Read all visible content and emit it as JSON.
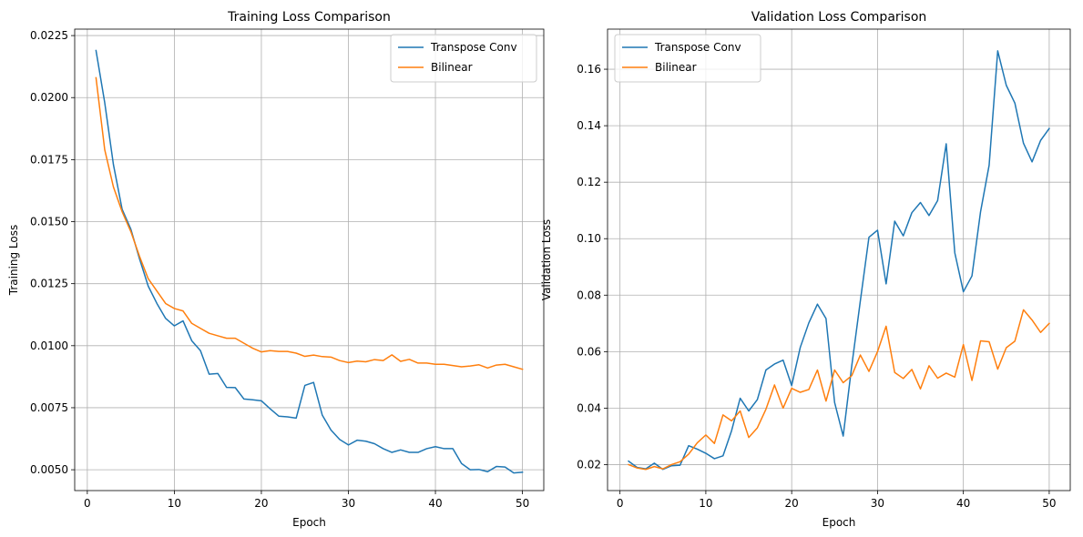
{
  "chart_data": [
    {
      "type": "line",
      "title": "Training Loss Comparison",
      "xlabel": "Epoch",
      "ylabel": "Training Loss",
      "xlim": [
        -1.45,
        52.45
      ],
      "ylim": [
        0.00416,
        0.02276
      ],
      "xticks": [
        0,
        10,
        20,
        30,
        40,
        50
      ],
      "yticks": [
        0.005,
        0.0075,
        0.01,
        0.0125,
        0.015,
        0.0175,
        0.02,
        0.0225
      ],
      "ytick_labels": [
        "0.0050",
        "0.0075",
        "0.0100",
        "0.0125",
        "0.0150",
        "0.0175",
        "0.0200",
        "0.0225"
      ],
      "grid": true,
      "legend_position": "upper right",
      "x": [
        1,
        2,
        3,
        4,
        5,
        6,
        7,
        8,
        9,
        10,
        11,
        12,
        13,
        14,
        15,
        16,
        17,
        18,
        19,
        20,
        21,
        22,
        23,
        24,
        25,
        26,
        27,
        28,
        29,
        30,
        31,
        32,
        33,
        34,
        35,
        36,
        37,
        38,
        39,
        40,
        41,
        42,
        43,
        44,
        45,
        46,
        47,
        48,
        49,
        50
      ],
      "series": [
        {
          "name": "Transpose Conv",
          "color": "#1f77b4",
          "values": [
            0.0219,
            0.0198,
            0.0173,
            0.0155,
            0.0147,
            0.0135,
            0.0124,
            0.0117,
            0.0111,
            0.0108,
            0.011,
            0.0102,
            0.0098,
            0.00885,
            0.00888,
            0.00832,
            0.00831,
            0.00785,
            0.00782,
            0.00778,
            0.00746,
            0.00716,
            0.00713,
            0.00708,
            0.0084,
            0.00852,
            0.0072,
            0.0066,
            0.00622,
            0.006,
            0.00619,
            0.00615,
            0.00605,
            0.00585,
            0.0057,
            0.0058,
            0.0057,
            0.0057,
            0.00585,
            0.00593,
            0.00585,
            0.00585,
            0.00525,
            0.005,
            0.00501,
            0.00492,
            0.00513,
            0.00511,
            0.00487,
            0.0049
          ]
        },
        {
          "name": "Bilinear",
          "color": "#ff7f0e",
          "values": [
            0.0208,
            0.0179,
            0.0164,
            0.0154,
            0.0146,
            0.0136,
            0.0127,
            0.0122,
            0.0117,
            0.0115,
            0.0114,
            0.0109,
            0.0107,
            0.0105,
            0.0104,
            0.0103,
            0.0103,
            0.0101,
            0.0099,
            0.00975,
            0.0098,
            0.00977,
            0.00977,
            0.0097,
            0.00957,
            0.00962,
            0.00956,
            0.00954,
            0.0094,
            0.00932,
            0.00938,
            0.00935,
            0.00944,
            0.0094,
            0.00963,
            0.00937,
            0.00945,
            0.0093,
            0.0093,
            0.00925,
            0.00925,
            0.0092,
            0.00915,
            0.00918,
            0.00923,
            0.0091,
            0.00922,
            0.00925,
            0.00915,
            0.00905
          ]
        }
      ]
    },
    {
      "type": "line",
      "title": "Validation Loss Comparison",
      "xlabel": "Epoch",
      "ylabel": "Validation Loss",
      "xlim": [
        -1.45,
        52.45
      ],
      "ylim": [
        0.0108,
        0.1742
      ],
      "xticks": [
        0,
        10,
        20,
        30,
        40,
        50
      ],
      "yticks": [
        0.02,
        0.04,
        0.06,
        0.08,
        0.1,
        0.12,
        0.14,
        0.16
      ],
      "ytick_labels": [
        "0.02",
        "0.04",
        "0.06",
        "0.08",
        "0.10",
        "0.12",
        "0.14",
        "0.16"
      ],
      "grid": true,
      "legend_position": "upper left",
      "x": [
        1,
        2,
        3,
        4,
        5,
        6,
        7,
        8,
        9,
        10,
        11,
        12,
        13,
        14,
        15,
        16,
        17,
        18,
        19,
        20,
        21,
        22,
        23,
        24,
        25,
        26,
        27,
        28,
        29,
        30,
        31,
        32,
        33,
        34,
        35,
        36,
        37,
        38,
        39,
        40,
        41,
        42,
        43,
        44,
        45,
        46,
        47,
        48,
        49,
        50
      ],
      "series": [
        {
          "name": "Transpose Conv",
          "color": "#1f77b4",
          "values": [
            0.0212,
            0.019,
            0.0185,
            0.0205,
            0.0183,
            0.0196,
            0.0198,
            0.0267,
            0.0255,
            0.024,
            0.0221,
            0.0231,
            0.032,
            0.0435,
            0.039,
            0.043,
            0.0535,
            0.0556,
            0.057,
            0.048,
            0.0615,
            0.0702,
            0.0768,
            0.0717,
            0.042,
            0.0301,
            0.055,
            0.078,
            0.1005,
            0.103,
            0.084,
            0.1062,
            0.101,
            0.1092,
            0.1128,
            0.1082,
            0.1135,
            0.1336,
            0.095,
            0.0812,
            0.0868,
            0.1095,
            0.126,
            0.1665,
            0.1543,
            0.148,
            0.1338,
            0.1272,
            0.1348,
            0.139
          ]
        },
        {
          "name": "Bilinear",
          "color": "#ff7f0e",
          "values": [
            0.02,
            0.0188,
            0.0183,
            0.0193,
            0.0185,
            0.02,
            0.021,
            0.0237,
            0.0277,
            0.0305,
            0.0275,
            0.0376,
            0.0355,
            0.039,
            0.0296,
            0.033,
            0.0396,
            0.0482,
            0.04,
            0.047,
            0.0456,
            0.0466,
            0.0535,
            0.0425,
            0.0535,
            0.049,
            0.0515,
            0.0588,
            0.053,
            0.06,
            0.069,
            0.0526,
            0.0505,
            0.0537,
            0.0468,
            0.055,
            0.0506,
            0.0524,
            0.051,
            0.0625,
            0.0498,
            0.0638,
            0.0635,
            0.0538,
            0.0614,
            0.0637,
            0.0748,
            0.0712,
            0.0668,
            0.07
          ]
        }
      ]
    }
  ]
}
